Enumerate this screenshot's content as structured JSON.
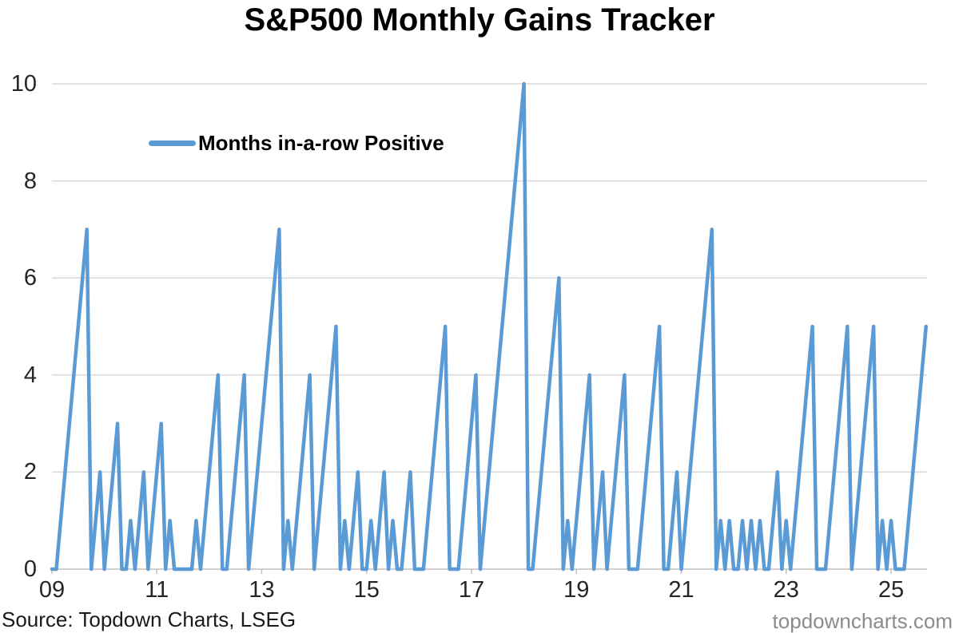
{
  "title": "S&P500 Monthly Gains Tracker",
  "legend": {
    "series_label": "Months in-a-row Positive"
  },
  "footer": {
    "source": "Source: Topdown Charts, LSEG",
    "watermark": "topdowncharts.com"
  },
  "colors": {
    "line": "#5B9BD5",
    "grid": "#D9D9D9",
    "axis": "#C0C0C0",
    "title": "#000000",
    "label": "#262626",
    "source": "#1A1A1A",
    "watermark": "#8C8C8C"
  },
  "chart_data": {
    "type": "line",
    "title": "S&P500 Monthly Gains Tracker",
    "series_name": "Months in-a-row Positive",
    "x_start": "2009-01",
    "x_end": "2025-09",
    "x_frequency": "monthly",
    "x_tick_labels": [
      "09",
      "11",
      "13",
      "15",
      "17",
      "19",
      "21",
      "23",
      "25"
    ],
    "x_tick_interval_years": 2,
    "y_ticks": [
      0,
      2,
      4,
      6,
      8,
      10
    ],
    "ylim": [
      0,
      10
    ],
    "grid": "horizontal-only",
    "legend_position": "inside-top-left",
    "values": [
      0,
      0,
      1,
      2,
      3,
      4,
      5,
      6,
      7,
      0,
      1,
      2,
      0,
      1,
      2,
      3,
      0,
      0,
      1,
      0,
      1,
      2,
      0,
      1,
      2,
      3,
      0,
      1,
      0,
      0,
      0,
      0,
      0,
      1,
      0,
      1,
      2,
      3,
      4,
      0,
      0,
      1,
      2,
      3,
      4,
      0,
      1,
      2,
      3,
      4,
      5,
      6,
      7,
      0,
      1,
      0,
      1,
      2,
      3,
      4,
      0,
      1,
      2,
      3,
      4,
      5,
      0,
      1,
      0,
      1,
      2,
      0,
      0,
      1,
      0,
      1,
      2,
      0,
      1,
      0,
      0,
      1,
      2,
      0,
      0,
      0,
      1,
      2,
      3,
      4,
      5,
      0,
      0,
      0,
      1,
      2,
      3,
      4,
      0,
      1,
      2,
      3,
      4,
      5,
      6,
      7,
      8,
      9,
      10,
      0,
      0,
      1,
      2,
      3,
      4,
      5,
      6,
      0,
      1,
      0,
      1,
      2,
      3,
      4,
      0,
      1,
      2,
      0,
      1,
      2,
      3,
      4,
      0,
      0,
      0,
      1,
      2,
      3,
      4,
      5,
      0,
      0,
      1,
      2,
      0,
      1,
      2,
      3,
      4,
      5,
      6,
      7,
      0,
      1,
      0,
      1,
      0,
      0,
      1,
      0,
      1,
      0,
      1,
      0,
      0,
      1,
      2,
      0,
      1,
      0,
      1,
      2,
      3,
      4,
      5,
      0,
      0,
      0,
      1,
      2,
      3,
      4,
      5,
      0,
      1,
      2,
      3,
      4,
      5,
      0,
      1,
      0,
      1,
      0,
      0,
      0,
      1,
      2,
      3,
      4,
      5
    ]
  }
}
